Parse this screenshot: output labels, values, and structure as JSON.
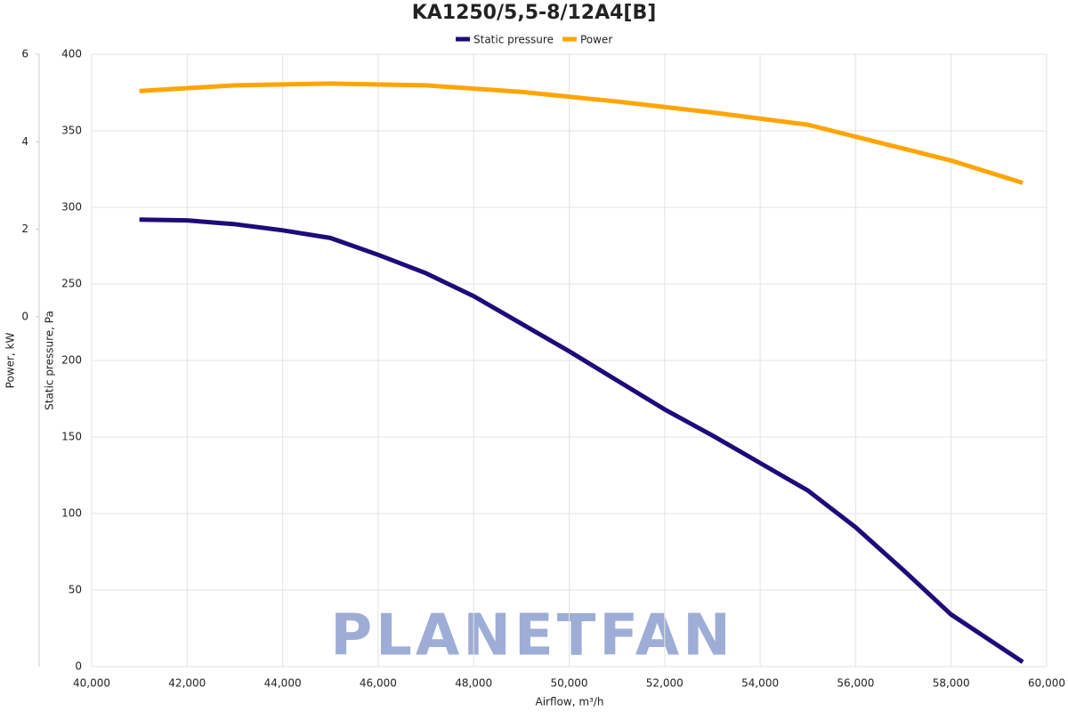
{
  "chart_data": {
    "type": "line",
    "title": "KA1250/5,5-8/12A4[B]",
    "watermark": "PLANETFAN",
    "x_label": "Airflow, m³/h",
    "y_label": "Static pressure, Pa",
    "y2_label": "Power, kW",
    "xlim": [
      40000,
      60000
    ],
    "xticks": [
      {
        "value": 40000,
        "label": "40,000"
      },
      {
        "value": 42000,
        "label": "42,000"
      },
      {
        "value": 44000,
        "label": "44,000"
      },
      {
        "value": 46000,
        "label": "46,000"
      },
      {
        "value": 48000,
        "label": "48,000"
      },
      {
        "value": 50000,
        "label": "50,000"
      },
      {
        "value": 52000,
        "label": "52,000"
      },
      {
        "value": 54000,
        "label": "54,000"
      },
      {
        "value": 56000,
        "label": "56,000"
      },
      {
        "value": 58000,
        "label": "58,000"
      },
      {
        "value": 60000,
        "label": "60,000"
      }
    ],
    "ylim": [
      0,
      400
    ],
    "yticks": [
      0,
      50,
      100,
      150,
      200,
      250,
      300,
      350,
      400
    ],
    "y2lim": [
      -8,
      6
    ],
    "y2ticks": [
      0,
      2,
      4,
      6
    ],
    "grid": true,
    "legend": "top",
    "series": [
      {
        "name": "Static pressure",
        "color": "#1f0a7a",
        "x": [
          41000,
          42000,
          43000,
          44000,
          45000,
          46000,
          47000,
          48000,
          49000,
          50000,
          51000,
          52000,
          53000,
          54000,
          55000,
          56000,
          57000,
          58000,
          59500
        ],
        "values": [
          292,
          291.5,
          289,
          285,
          280,
          269,
          257,
          242,
          224,
          206,
          187,
          168,
          151,
          133,
          115,
          91,
          63,
          34,
          3
        ]
      },
      {
        "name": "Power",
        "color": "#ffa500",
        "axis": "y2",
        "x": [
          41000,
          43000,
          45000,
          47000,
          49000,
          51000,
          53000,
          55000,
          56500,
          58000,
          59500
        ],
        "values": [
          5.16,
          5.29,
          5.33,
          5.29,
          5.14,
          4.92,
          4.67,
          4.39,
          3.98,
          3.57,
          3.06
        ]
      }
    ]
  }
}
